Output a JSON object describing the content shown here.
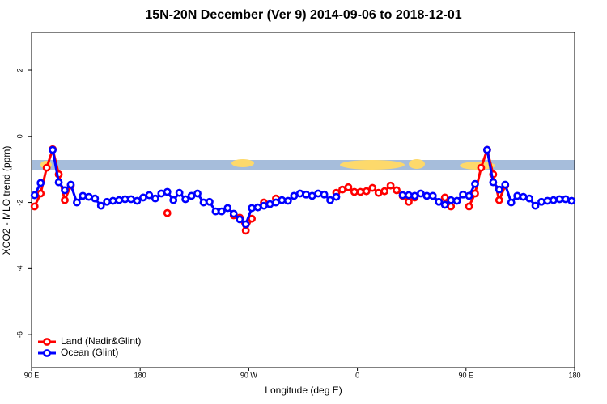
{
  "chart_data": {
    "type": "line",
    "title": "15N-20N December (Ver 9)   2014-09-06 to 2018-12-01",
    "xlabel": "Longitude (deg E)",
    "ylabel": "XCO2 - MLO trend (ppm)",
    "xlim": [
      90,
      540
    ],
    "xticks": [
      {
        "value": 90,
        "label": "90 E"
      },
      180,
      {
        "value": 270,
        "label": "90 W"
      },
      {
        "value": 360,
        "label": "0"
      },
      {
        "value": 450,
        "label": "90 E"
      },
      {
        "value": 540,
        "label": "180"
      }
    ],
    "ylim": [
      -7,
      3.15
    ],
    "yticks": [
      2,
      0,
      -2,
      -4,
      -6
    ],
    "legend": "bottom-left",
    "x": [
      92.5,
      97.5,
      102.5,
      107.5,
      112.5,
      117.5,
      122.5,
      127.5,
      132.5,
      137.5,
      142.5,
      147.5,
      152.5,
      157.5,
      162.5,
      167.5,
      172.5,
      177.5,
      182.5,
      187.5,
      192.5,
      197.5,
      202.5,
      207.5,
      212.5,
      217.5,
      222.5,
      227.5,
      232.5,
      237.5,
      242.5,
      247.5,
      252.5,
      257.5,
      262.5,
      267.5,
      272.5,
      277.5,
      282.5,
      287.5,
      292.5,
      297.5,
      302.5,
      307.5,
      312.5,
      317.5,
      322.5,
      327.5,
      332.5,
      337.5,
      342.5,
      347.5,
      352.5,
      357.5,
      362.5,
      367.5,
      372.5,
      377.5,
      382.5,
      387.5,
      392.5,
      397.5,
      402.5,
      407.5,
      412.5,
      417.5,
      422.5,
      427.5,
      432.5,
      437.5,
      442.5,
      447.5,
      452.5,
      457.5,
      462.5,
      467.5,
      472.5,
      477.5,
      482.5,
      487.5,
      492.5,
      497.5,
      502.5,
      507.5,
      512.5,
      517.5,
      522.5,
      527.5,
      532.5,
      537.5
    ],
    "series": [
      {
        "name": "Land (Nadir&Glint)",
        "color": "#ff0000",
        "values": [
          -2.12,
          -1.73,
          -0.95,
          -0.39,
          -1.15,
          -1.93,
          -1.49,
          null,
          null,
          null,
          null,
          null,
          null,
          null,
          null,
          null,
          null,
          null,
          null,
          null,
          null,
          null,
          -2.32,
          null,
          null,
          null,
          null,
          null,
          null,
          null,
          null,
          null,
          null,
          -2.39,
          -2.46,
          -2.85,
          -2.49,
          null,
          -2.0,
          null,
          -1.88,
          null,
          null,
          null,
          null,
          null,
          null,
          null,
          null,
          null,
          -1.71,
          -1.61,
          -1.54,
          -1.68,
          -1.68,
          -1.66,
          -1.56,
          -1.71,
          -1.66,
          -1.49,
          -1.63,
          -1.8,
          -1.98,
          -1.85,
          null,
          null,
          null,
          null,
          -1.85,
          -2.12,
          null,
          null,
          -2.12,
          -1.73,
          -0.95,
          -0.41,
          -1.15,
          -1.93,
          -1.49,
          null,
          null,
          null,
          null,
          null,
          null,
          null,
          null,
          null,
          null,
          null
        ]
      },
      {
        "name": "Ocean (Glint)",
        "color": "#0000ff",
        "values": [
          -1.78,
          -1.41,
          null,
          -0.41,
          -1.39,
          -1.63,
          -1.46,
          -2.0,
          -1.8,
          -1.83,
          -1.88,
          -2.1,
          -1.98,
          -1.95,
          -1.93,
          -1.9,
          -1.9,
          -1.95,
          -1.85,
          -1.78,
          -1.88,
          -1.73,
          -1.68,
          -1.93,
          -1.71,
          -1.9,
          -1.8,
          -1.73,
          -2.0,
          -1.98,
          -2.27,
          -2.27,
          -2.17,
          -2.34,
          -2.51,
          -2.66,
          -2.17,
          -2.15,
          -2.1,
          -2.05,
          -2.0,
          -1.93,
          -1.95,
          -1.8,
          -1.73,
          -1.76,
          -1.8,
          -1.73,
          -1.76,
          -1.93,
          -1.83,
          null,
          null,
          null,
          null,
          null,
          null,
          null,
          null,
          null,
          null,
          -1.78,
          -1.78,
          -1.8,
          -1.73,
          -1.8,
          -1.8,
          -1.98,
          -2.07,
          -1.93,
          -1.95,
          -1.76,
          -1.8,
          -1.44,
          null,
          -0.41,
          -1.39,
          -1.61,
          -1.46,
          -2.0,
          -1.8,
          -1.83,
          -1.88,
          -2.1,
          -1.98,
          -1.95,
          -1.93,
          -1.9,
          -1.9,
          -1.95
        ]
      }
    ]
  }
}
